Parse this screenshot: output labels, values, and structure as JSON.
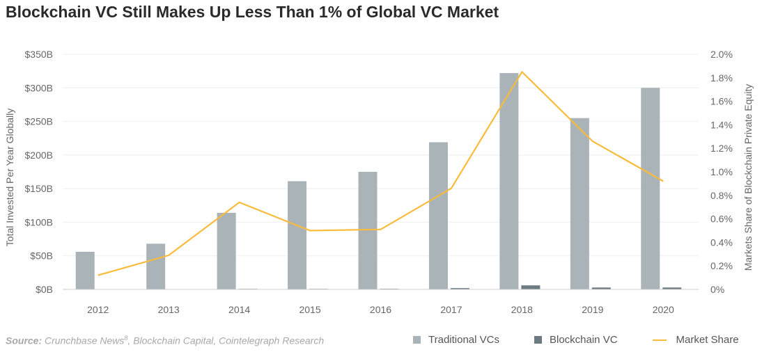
{
  "chart_data": {
    "type": "bar",
    "title": "Blockchain VC Still Makes Up Less Than 1% of Global VC Market",
    "categories": [
      "2012",
      "2013",
      "2014",
      "2015",
      "2016",
      "2017",
      "2018",
      "2019",
      "2020"
    ],
    "series": [
      {
        "name": "Traditional VCs",
        "type": "bar",
        "axis": "left",
        "values": [
          56,
          68,
          114,
          161,
          175,
          219,
          322,
          255,
          300
        ]
      },
      {
        "name": "Blockchain VC",
        "type": "bar",
        "axis": "left",
        "values": [
          0.1,
          0.2,
          0.8,
          0.8,
          0.9,
          1.9,
          6.0,
          2.8,
          2.8
        ]
      },
      {
        "name": "Market Share",
        "type": "line",
        "axis": "right",
        "values": [
          0.12,
          0.29,
          0.74,
          0.5,
          0.51,
          0.86,
          1.85,
          1.26,
          0.92
        ]
      }
    ],
    "ylabel": "Total Invested Per Year Globally",
    "ylim": [
      0,
      350
    ],
    "yticks": [
      "$0B",
      "$50B",
      "$100B",
      "$150B",
      "$200B",
      "$250B",
      "$300B",
      "$350B"
    ],
    "y2label": "Markets Share of Blockchain Private Equity",
    "y2lim": [
      0,
      2.0
    ],
    "y2ticks": [
      "0%",
      "0.2%",
      "0.4%",
      "0.6%",
      "0.8%",
      "1.0%",
      "1.2%",
      "1.4%",
      "1.6%",
      "1.8%",
      "2.0%"
    ],
    "grid": true,
    "legend_position": "bottom-right",
    "colors": {
      "traditional": "#a9b3b8",
      "blockchain": "#6c7a82",
      "market_share": "#f9bb3b",
      "grid": "#eeeeee",
      "axis_text": "#666666"
    }
  },
  "footer": {
    "source_label": "Source:",
    "source_text": " Crunchbase News",
    "source_sup": "8",
    "source_rest": ", Blockchain Capital, Cointelegraph Research"
  }
}
